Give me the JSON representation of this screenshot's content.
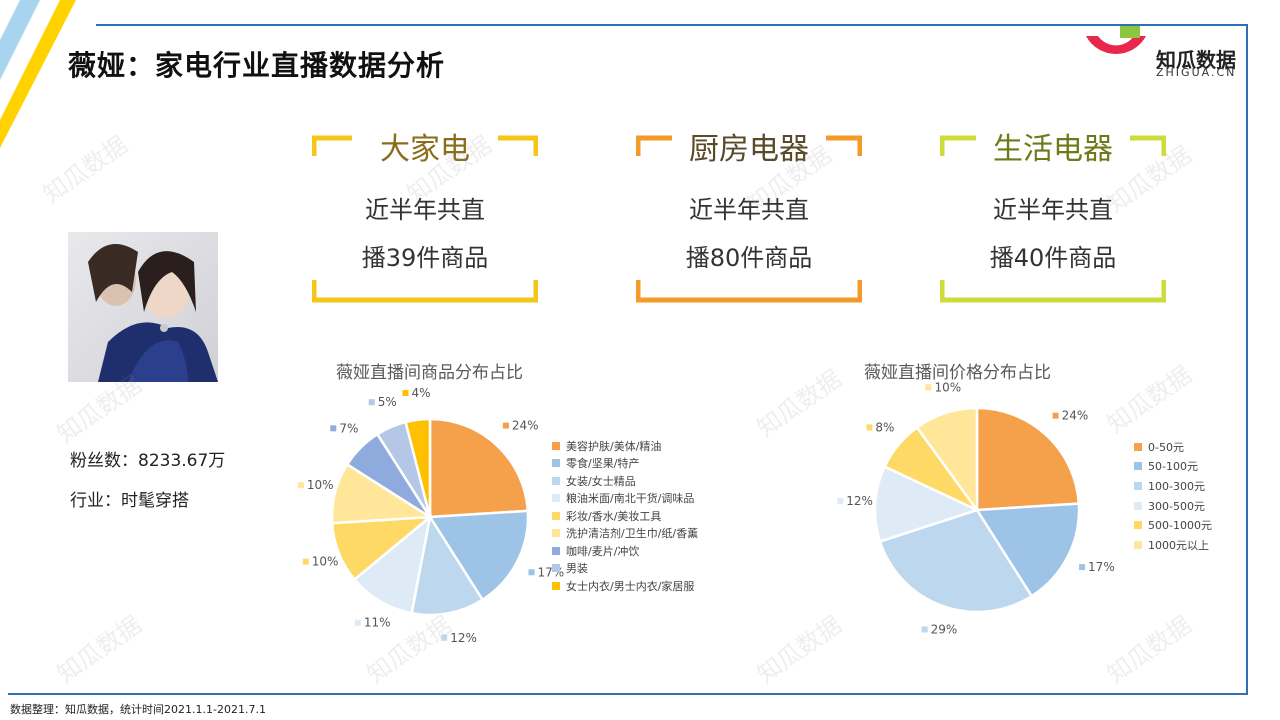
{
  "title": "薇娅：家电行业直播数据分析",
  "logo": {
    "name": "知瓜数据",
    "sub": "ZHIGUA.CN"
  },
  "influencer": {
    "fans_label": "粉丝数：8233.67万",
    "industry_label": "行业：时髦穿搭"
  },
  "categories": [
    {
      "name": "大家电",
      "line1": "近半年共直",
      "line2": "播39件商品",
      "color": "#f5c518",
      "text_color": "#8a6d1a"
    },
    {
      "name": "厨房电器",
      "line1": "近半年共直",
      "line2": "播80件商品",
      "color": "#f39a2a",
      "text_color": "#5a4a2a"
    },
    {
      "name": "生活电器",
      "line1": "近半年共直",
      "line2": "播40件商品",
      "color": "#cddc39",
      "text_color": "#6e7a1a"
    }
  ],
  "chart_titles": {
    "product": "薇娅直播间商品分布占比",
    "price": "薇娅直播间价格分布占比"
  },
  "chart_data": [
    {
      "type": "pie",
      "title": "薇娅直播间商品分布占比",
      "categories": [
        "美容护肤/美体/精油",
        "零食/坚果/特产",
        "女装/女士精品",
        "粮油米面/南北干货/调味品",
        "彩妆/香水/美妆工具",
        "洗护清洁剂/卫生巾/纸/香薰",
        "咖啡/麦片/冲饮",
        "男装",
        "女士内衣/男士内衣/家居服"
      ],
      "values": [
        24,
        17,
        12,
        11,
        10,
        10,
        7,
        5,
        4
      ],
      "labels": [
        "24%",
        "17%",
        "12%",
        "11%",
        "10%",
        "10%",
        "7%",
        "5%",
        "4%"
      ],
      "colors": [
        "#f5a04a",
        "#9dc3e6",
        "#bdd7ee",
        "#deebf7",
        "#ffd966",
        "#ffe699",
        "#8faadc",
        "#b4c7e7",
        "#ffc000"
      ],
      "legend": "right"
    },
    {
      "type": "pie",
      "title": "薇娅直播间价格分布占比",
      "categories": [
        "0-50元",
        "50-100元",
        "100-300元",
        "300-500元",
        "500-1000元",
        "1000元以上"
      ],
      "values": [
        24,
        17,
        29,
        12,
        8,
        10
      ],
      "labels": [
        "24%",
        "17%",
        "29%",
        "12%",
        "8%",
        "10%"
      ],
      "colors": [
        "#f5a04a",
        "#9dc3e6",
        "#bdd7ee",
        "#deebf7",
        "#ffd966",
        "#ffe699"
      ],
      "legend": "right"
    }
  ],
  "footer": "数据整理：知瓜数据，统计时间2021.1.1-2021.7.1",
  "watermark": "知瓜数据"
}
